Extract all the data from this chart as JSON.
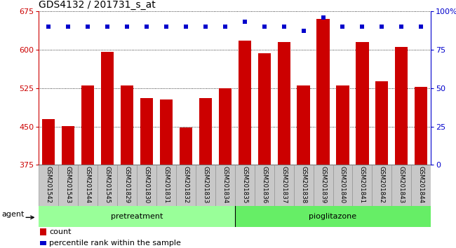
{
  "title": "GDS4132 / 201731_s_at",
  "samples": [
    "GSM201542",
    "GSM201543",
    "GSM201544",
    "GSM201545",
    "GSM201829",
    "GSM201830",
    "GSM201831",
    "GSM201832",
    "GSM201833",
    "GSM201834",
    "GSM201835",
    "GSM201836",
    "GSM201837",
    "GSM201838",
    "GSM201839",
    "GSM201840",
    "GSM201841",
    "GSM201842",
    "GSM201843",
    "GSM201844"
  ],
  "bar_values": [
    465,
    451,
    530,
    595,
    530,
    505,
    503,
    448,
    505,
    525,
    617,
    593,
    615,
    530,
    660,
    530,
    615,
    538,
    605,
    527
  ],
  "percentile_values": [
    90,
    90,
    90,
    90,
    90,
    90,
    90,
    90,
    90,
    90,
    93,
    90,
    90,
    87,
    96,
    90,
    90,
    90,
    90,
    90
  ],
  "bar_color": "#cc0000",
  "dot_color": "#0000cc",
  "ylim_left": [
    375,
    675
  ],
  "ylim_right": [
    0,
    100
  ],
  "yticks_left": [
    375,
    450,
    525,
    600,
    675
  ],
  "yticks_right": [
    0,
    25,
    50,
    75,
    100
  ],
  "yticklabels_right": [
    "0",
    "25",
    "50",
    "75",
    "100%"
  ],
  "group_label_pretreatment": "pretreatment",
  "group_label_pioglitazone": "pioglitazone",
  "pretreatment_count": 10,
  "pioglitazone_count": 10,
  "pretreatment_color": "#99ff99",
  "pioglitazone_color": "#66ee66",
  "agent_label": "agent",
  "legend_count": "count",
  "legend_percentile": "percentile rank within the sample",
  "background_color": "#ffffff",
  "title_fontsize": 10,
  "bar_width": 0.65,
  "dot_size": 16
}
